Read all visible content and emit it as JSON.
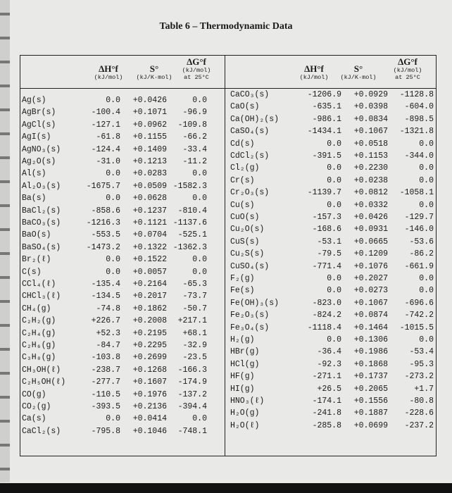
{
  "title": "Table 6 – Thermodynamic Data",
  "headers": {
    "dh": {
      "symbol": "ΔH°f",
      "unit": "(kJ/mol)"
    },
    "s": {
      "symbol": "S°",
      "unit": "(kJ/K·mol)"
    },
    "dg": {
      "symbol": "ΔG°f",
      "unit": "(kJ/mol)",
      "note": "at 25°C"
    }
  },
  "left_rows": [
    [
      "Ag(s)",
      "0.0",
      "+0.0426",
      "0.0"
    ],
    [
      "AgBr(s)",
      "-100.4",
      "+0.1071",
      "-96.9"
    ],
    [
      "AgCl(s)",
      "-127.1",
      "+0.0962",
      "-109.8"
    ],
    [
      "AgI(s)",
      "-61.8",
      "+0.1155",
      "-66.2"
    ],
    [
      "AgNO₃(s)",
      "-124.4",
      "+0.1409",
      "-33.4"
    ],
    [
      "Ag₂O(s)",
      "-31.0",
      "+0.1213",
      "-11.2"
    ],
    [
      "Al(s)",
      "0.0",
      "+0.0283",
      "0.0"
    ],
    [
      "Al₂O₃(s)",
      "-1675.7",
      "+0.0509",
      "-1582.3"
    ],
    [
      "Ba(s)",
      "0.0",
      "+0.0628",
      "0.0"
    ],
    [
      "BaCl₂(s)",
      "-858.6",
      "+0.1237",
      "-810.4"
    ],
    [
      "BaCO₃(s)",
      "-1216.3",
      "+0.1121",
      "-1137.6"
    ],
    [
      "BaO(s)",
      "-553.5",
      "+0.0704",
      "-525.1"
    ],
    [
      "BaSO₄(s)",
      "-1473.2",
      "+0.1322",
      "-1362.3"
    ],
    [
      "Br₂(ℓ)",
      "0.0",
      "+0.1522",
      "0.0"
    ],
    [
      "C(s)",
      "0.0",
      "+0.0057",
      "0.0"
    ],
    [
      "CCl₄(ℓ)",
      "-135.4",
      "+0.2164",
      "-65.3"
    ],
    [
      "CHCl₃(ℓ)",
      "-134.5",
      "+0.2017",
      "-73.7"
    ],
    [
      "CH₄(g)",
      "-74.8",
      "+0.1862",
      "-50.7"
    ],
    [
      "C₂H₂(g)",
      "+226.7",
      "+0.2008",
      "+217.1"
    ],
    [
      "C₂H₄(g)",
      "+52.3",
      "+0.2195",
      "+68.1"
    ],
    [
      "C₂H₆(g)",
      "-84.7",
      "+0.2295",
      "-32.9"
    ],
    [
      "C₃H₈(g)",
      "-103.8",
      "+0.2699",
      "-23.5"
    ],
    [
      "CH₃OH(ℓ)",
      "-238.7",
      "+0.1268",
      "-166.3"
    ],
    [
      "C₂H₅OH(ℓ)",
      "-277.7",
      "+0.1607",
      "-174.9"
    ],
    [
      "CO(g)",
      "-110.5",
      "+0.1976",
      "-137.2"
    ],
    [
      "CO₂(g)",
      "-393.5",
      "+0.2136",
      "-394.4"
    ],
    [
      "Ca(s)",
      "0.0",
      "+0.0414",
      "0.0"
    ],
    [
      "CaCl₂(s)",
      "-795.8",
      "+0.1046",
      "-748.1"
    ]
  ],
  "right_rows": [
    [
      "CaCO₃(s)",
      "-1206.9",
      "+0.0929",
      "-1128.8"
    ],
    [
      "CaO(s)",
      "-635.1",
      "+0.0398",
      "-604.0"
    ],
    [
      "Ca(OH)₂(s)",
      "-986.1",
      "+0.0834",
      "-898.5"
    ],
    [
      "CaSO₄(s)",
      "-1434.1",
      "+0.1067",
      "-1321.8"
    ],
    [
      "Cd(s)",
      "0.0",
      "+0.0518",
      "0.0"
    ],
    [
      "CdCl₂(s)",
      "-391.5",
      "+0.1153",
      "-344.0"
    ],
    [
      "Cl₂(g)",
      "0.0",
      "+0.2230",
      "0.0"
    ],
    [
      "Cr(s)",
      "0.0",
      "+0.0238",
      "0.0"
    ],
    [
      "Cr₂O₃(s)",
      "-1139.7",
      "+0.0812",
      "-1058.1"
    ],
    [
      "Cu(s)",
      "0.0",
      "+0.0332",
      "0.0"
    ],
    [
      "CuO(s)",
      "-157.3",
      "+0.0426",
      "-129.7"
    ],
    [
      "Cu₂O(s)",
      "-168.6",
      "+0.0931",
      "-146.0"
    ],
    [
      "CuS(s)",
      "-53.1",
      "+0.0665",
      "-53.6"
    ],
    [
      "Cu₂S(s)",
      "-79.5",
      "+0.1209",
      "-86.2"
    ],
    [
      "CuSO₄(s)",
      "-771.4",
      "+0.1076",
      "-661.9"
    ],
    [
      "F₂(g)",
      "0.0",
      "+0.2027",
      "0.0"
    ],
    [
      "Fe(s)",
      "0.0",
      "+0.0273",
      "0.0"
    ],
    [
      "Fe(OH)₃(s)",
      "-823.0",
      "+0.1067",
      "-696.6"
    ],
    [
      "Fe₂O₃(s)",
      "-824.2",
      "+0.0874",
      "-742.2"
    ],
    [
      "Fe₃O₄(s)",
      "-1118.4",
      "+0.1464",
      "-1015.5"
    ],
    [
      "H₂(g)",
      "0.0",
      "+0.1306",
      "0.0"
    ],
    [
      "HBr(g)",
      "-36.4",
      "+0.1986",
      "-53.4"
    ],
    [
      "HCl(g)",
      "-92.3",
      "+0.1868",
      "-95.3"
    ],
    [
      "HF(g)",
      "-271.1",
      "+0.1737",
      "-273.2"
    ],
    [
      "HI(g)",
      "+26.5",
      "+0.2065",
      "+1.7"
    ],
    [
      "HNO₃(ℓ)",
      "-174.1",
      "+0.1556",
      "-80.8"
    ],
    [
      "H₂O(g)",
      "-241.8",
      "+0.1887",
      "-228.6"
    ],
    [
      "H₂O(ℓ)",
      "-285.8",
      "+0.0699",
      "-237.2"
    ]
  ]
}
